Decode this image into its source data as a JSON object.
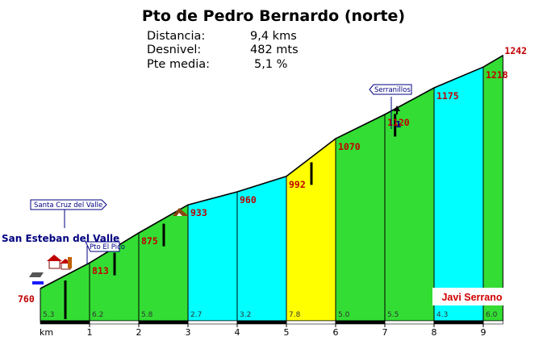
{
  "header": {
    "title": "Pto de Pedro Bernardo (norte)",
    "stats": [
      {
        "label": "Distancia:",
        "value": "9,4 kms"
      },
      {
        "label": "Desnivel:",
        "value": "482 mts"
      },
      {
        "label": "Pte media:",
        "value": "5,1 %"
      }
    ]
  },
  "signs": {
    "start_sign": "Santa Cruz del Valle",
    "start_town": "San Esteban del Valle",
    "pass_sign": "Pto El Pico",
    "summit_sign": "Serranillos",
    "summit_marker": "1"
  },
  "author": "Javi Serrano",
  "colors": {
    "green": "#33dd33",
    "cyan": "#00ffff",
    "yellow": "#ffff00",
    "label_red": "#c00000",
    "sign_blue": "#000080"
  },
  "chart_data": {
    "type": "area",
    "xlabel": "km",
    "xlim": [
      0,
      9.4
    ],
    "x_ticks": [
      "1",
      "2",
      "3",
      "4",
      "5",
      "6",
      "7",
      "8",
      "9"
    ],
    "points": [
      {
        "km": 0,
        "alt": 760
      },
      {
        "km": 1,
        "alt": 813
      },
      {
        "km": 2,
        "alt": 875
      },
      {
        "km": 3,
        "alt": 933
      },
      {
        "km": 4,
        "alt": 960
      },
      {
        "km": 5,
        "alt": 992
      },
      {
        "km": 6,
        "alt": 1070
      },
      {
        "km": 7,
        "alt": 1120
      },
      {
        "km": 8,
        "alt": 1175
      },
      {
        "km": 9,
        "alt": 1218
      },
      {
        "km": 9.4,
        "alt": 1242
      }
    ],
    "segments": [
      {
        "from": 0,
        "to": 1,
        "grade": "5.3",
        "color": "green"
      },
      {
        "from": 1,
        "to": 2,
        "grade": "6.2",
        "color": "green"
      },
      {
        "from": 2,
        "to": 3,
        "grade": "5.8",
        "color": "green"
      },
      {
        "from": 3,
        "to": 4,
        "grade": "2.7",
        "color": "cyan"
      },
      {
        "from": 4,
        "to": 5,
        "grade": "3.2",
        "color": "cyan"
      },
      {
        "from": 5,
        "to": 6,
        "grade": "7.8",
        "color": "yellow"
      },
      {
        "from": 6,
        "to": 7,
        "grade": "5.0",
        "color": "green"
      },
      {
        "from": 7,
        "to": 8,
        "grade": "5.5",
        "color": "green"
      },
      {
        "from": 8,
        "to": 9,
        "grade": "4.3",
        "color": "cyan"
      },
      {
        "from": 9,
        "to": 9.4,
        "grade": "6.0",
        "color": "green"
      }
    ],
    "markers_km": [
      0.5,
      1.5,
      2.5,
      5.5,
      7.2
    ]
  }
}
